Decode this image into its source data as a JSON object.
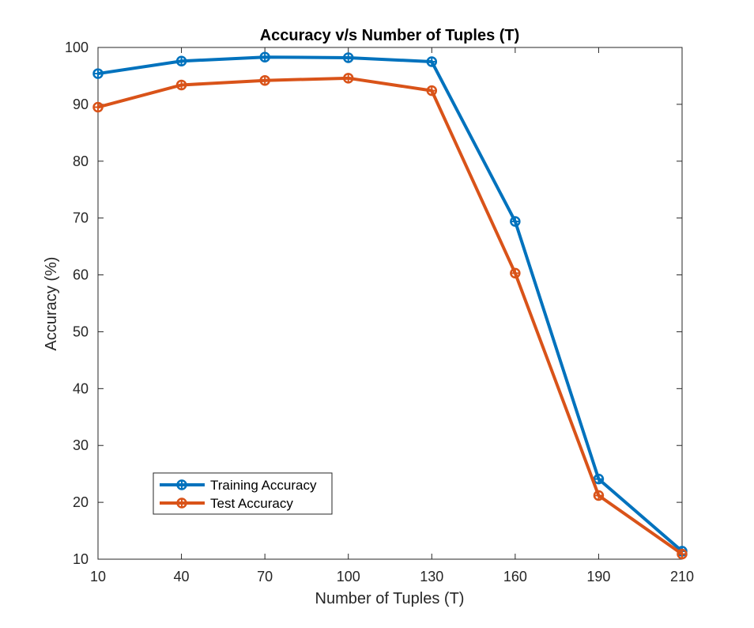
{
  "chart_data": {
    "type": "line",
    "title": "Accuracy v/s Number of Tuples (T)",
    "xlabel": "Number of Tuples (T)",
    "ylabel": "Accuracy (%)",
    "x": [
      10,
      40,
      70,
      100,
      130,
      160,
      190,
      210
    ],
    "xticks": [
      "10",
      "40",
      "70",
      "100",
      "130",
      "160",
      "190",
      "210"
    ],
    "yticks": [
      10,
      20,
      30,
      40,
      50,
      60,
      70,
      80,
      90,
      100
    ],
    "ylim": [
      10,
      100
    ],
    "grid": false,
    "legend_position": "bottom-left",
    "series": [
      {
        "name": "Training Accuracy",
        "color": "#0072BD",
        "marker": "circle-plus",
        "values": [
          95.4,
          97.6,
          98.3,
          98.2,
          97.5,
          69.4,
          24.1,
          11.4
        ]
      },
      {
        "name": "Test Accuracy",
        "color": "#D95319",
        "marker": "circle-plus",
        "values": [
          89.5,
          93.4,
          94.2,
          94.6,
          92.4,
          60.3,
          21.2,
          10.9
        ]
      }
    ]
  }
}
